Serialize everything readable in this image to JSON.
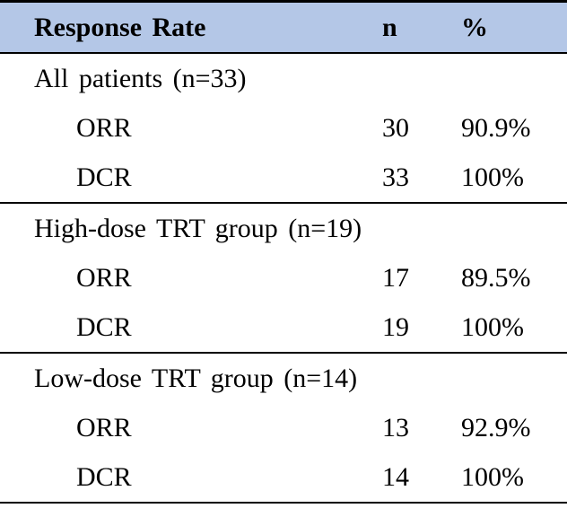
{
  "table": {
    "header": {
      "col1": "Response Rate",
      "col2": "n",
      "col3": "%"
    },
    "sections": [
      {
        "title": "All patients (n=33)",
        "rows": [
          {
            "label": "ORR",
            "n": "30",
            "pct": "90.9%"
          },
          {
            "label": "DCR",
            "n": "33",
            "pct": "100%"
          }
        ]
      },
      {
        "title": "High-dose TRT group (n=19)",
        "rows": [
          {
            "label": "ORR",
            "n": "17",
            "pct": "89.5%"
          },
          {
            "label": "DCR",
            "n": "19",
            "pct": "100%"
          }
        ]
      },
      {
        "title": "Low-dose TRT group (n=14)",
        "rows": [
          {
            "label": "ORR",
            "n": "13",
            "pct": "92.9%"
          },
          {
            "label": "DCR",
            "n": "14",
            "pct": "100%"
          }
        ]
      }
    ]
  },
  "colors": {
    "header_background": "#B4C7E7",
    "border": "#000000",
    "text": "#000000"
  },
  "chart_data": {
    "type": "table",
    "title": "Response Rate",
    "columns": [
      "Response Rate",
      "n",
      "%"
    ],
    "groups": [
      {
        "group": "All patients",
        "group_n": 33,
        "ORR_n": 30,
        "ORR_pct": 90.9,
        "DCR_n": 33,
        "DCR_pct": 100
      },
      {
        "group": "High-dose TRT group",
        "group_n": 19,
        "ORR_n": 17,
        "ORR_pct": 89.5,
        "DCR_n": 19,
        "DCR_pct": 100
      },
      {
        "group": "Low-dose TRT group",
        "group_n": 14,
        "ORR_n": 13,
        "ORR_pct": 92.9,
        "DCR_n": 14,
        "DCR_pct": 100
      }
    ]
  }
}
